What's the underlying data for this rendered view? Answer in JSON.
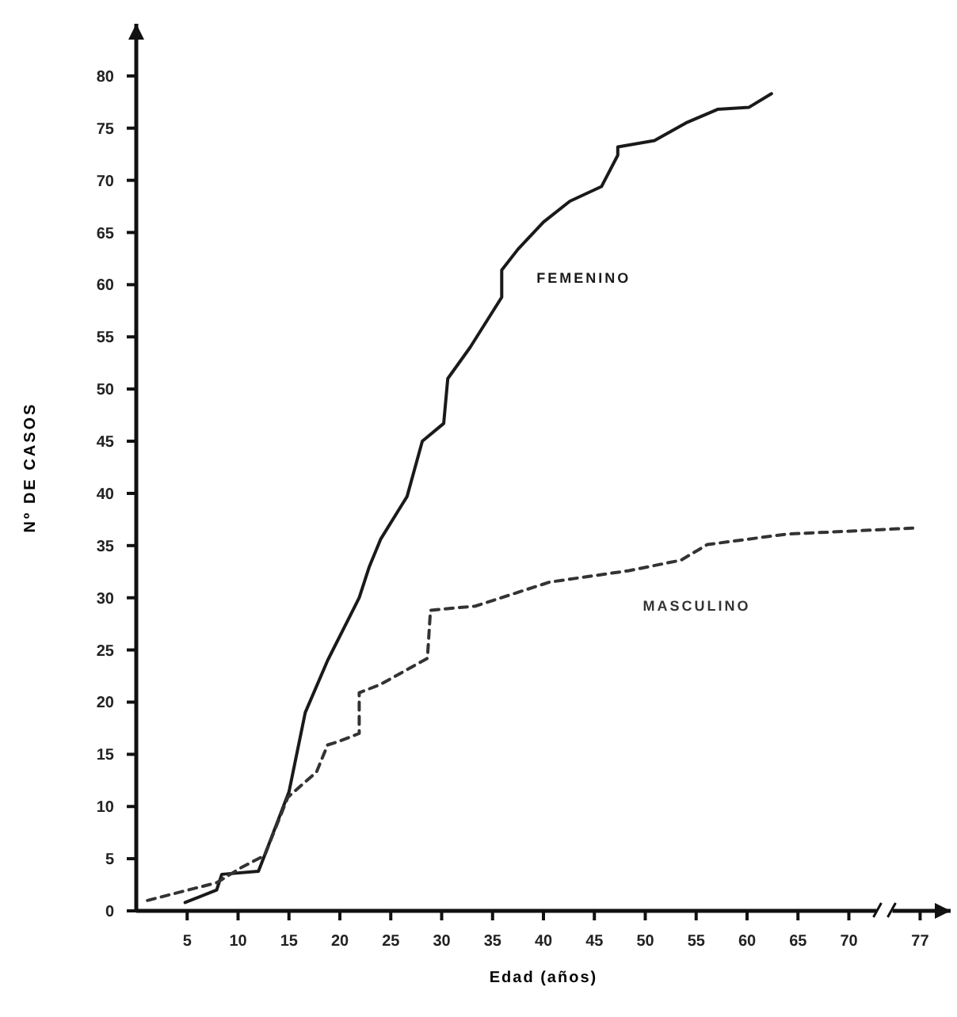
{
  "chart_data": {
    "type": "line",
    "xlabel": "Edad (años)",
    "ylabel": "Nº DE CASOS",
    "xlim": [
      0,
      80
    ],
    "ylim": [
      0,
      85
    ],
    "xticks": [
      5,
      10,
      15,
      20,
      25,
      30,
      35,
      40,
      45,
      50,
      55,
      60,
      65,
      70,
      77
    ],
    "yticks": [
      0,
      5,
      10,
      15,
      20,
      25,
      30,
      35,
      40,
      45,
      50,
      55,
      60,
      65,
      70,
      75,
      80
    ],
    "grid": false,
    "marker": "none",
    "series": [
      {
        "name": "FEMENINO",
        "color": "#1a1a1a",
        "line_style": "solid",
        "x": [
          4.8,
          7.9,
          8.4,
          12,
          12.6,
          15,
          16.6,
          18.8,
          21.9,
          22.9,
          24,
          26.6,
          28.1,
          30.2,
          30.6,
          32.8,
          35.9,
          35.9,
          37.5,
          40,
          42.6,
          45.7,
          47.3,
          47.3,
          50.9,
          54,
          57.1,
          60.2,
          62.4
        ],
        "values": [
          0.8,
          2,
          3.5,
          3.8,
          5.3,
          11.4,
          19,
          24,
          30,
          33,
          35.6,
          39.7,
          45,
          46.7,
          51,
          54,
          58.8,
          61.4,
          63.4,
          66,
          68,
          69.4,
          72.4,
          73.2,
          73.8,
          75.5,
          76.8,
          77,
          78.3
        ]
      },
      {
        "name": "MASCULINO",
        "color": "#333333",
        "line_style": "dashed",
        "x": [
          1.1,
          7.9,
          10.4,
          12.6,
          14.9,
          17.7,
          18.8,
          19.8,
          21.9,
          21.9,
          24,
          28.6,
          28.9,
          33.3,
          40.6,
          48.4,
          53.5,
          56.1,
          63.9,
          76.8
        ],
        "values": [
          1,
          2.7,
          4.2,
          5.3,
          10.9,
          13.3,
          15.9,
          16.2,
          17,
          20.9,
          21.7,
          24.2,
          28.8,
          29.2,
          31.5,
          32.6,
          33.6,
          35.1,
          36.1,
          36.7
        ]
      }
    ]
  }
}
